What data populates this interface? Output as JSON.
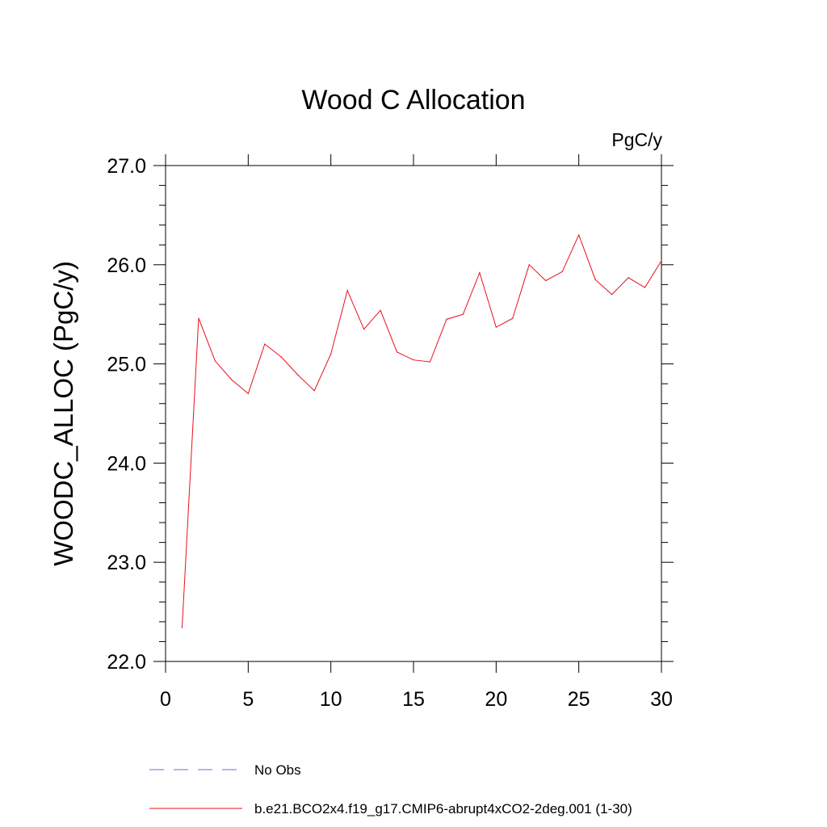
{
  "chart_data": {
    "type": "line",
    "title": "Wood C Allocation",
    "units": "PgC/y",
    "xlabel": "",
    "ylabel": "WOODC_ALLOC  (PgC/y)",
    "xlim": [
      0,
      30
    ],
    "ylim": [
      22.0,
      27.0
    ],
    "x_ticks": [
      0,
      5,
      10,
      15,
      20,
      25,
      30
    ],
    "x_tick_labels": [
      "0",
      "5",
      "10",
      "15",
      "20",
      "25",
      "30"
    ],
    "y_ticks": [
      22.0,
      23.0,
      24.0,
      25.0,
      26.0,
      27.0
    ],
    "y_tick_labels": [
      "22.0",
      "23.0",
      "24.0",
      "25.0",
      "26.0",
      "27.0"
    ],
    "grid": false,
    "series": [
      {
        "name": "b.e21.BCO2x4.f19_g17.CMIP6-abrupt4xCO2-2deg.001 (1-30)",
        "color": "#e8101a",
        "style": "solid",
        "x": [
          1,
          2,
          3,
          4,
          5,
          6,
          7,
          8,
          9,
          10,
          11,
          12,
          13,
          14,
          15,
          16,
          17,
          18,
          19,
          20,
          21,
          22,
          23,
          24,
          25,
          26,
          27,
          28,
          29,
          30
        ],
        "values": [
          22.34,
          25.46,
          25.03,
          24.84,
          24.7,
          25.2,
          25.07,
          24.89,
          24.73,
          25.1,
          25.74,
          25.35,
          25.54,
          25.12,
          25.04,
          25.02,
          25.45,
          25.5,
          25.92,
          25.37,
          25.46,
          26.0,
          25.84,
          25.93,
          26.3,
          25.85,
          25.7,
          25.87,
          25.77,
          26.04
        ]
      }
    ],
    "legend": [
      {
        "label": "No Obs",
        "color": "#6b6bd6",
        "style": "dashed"
      },
      {
        "label": "b.e21.BCO2x4.f19_g17.CMIP6-abrupt4xCO2-2deg.001 (1-30)",
        "color": "#e8101a",
        "style": "solid"
      }
    ],
    "legend_position": "bottom-left"
  }
}
